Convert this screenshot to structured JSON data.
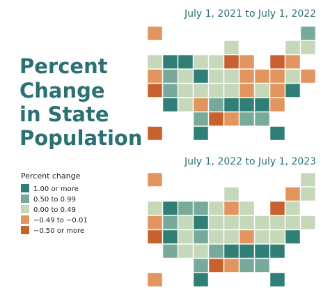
{
  "title_lines": [
    "Percent",
    "Change",
    "in State",
    "Population"
  ],
  "maps": [
    {
      "title": "July 1, 2021 to July 1, 2022"
    },
    {
      "title": "July 1, 2022 to July 1, 2023"
    }
  ],
  "legend": {
    "title": "Percent change",
    "items": [
      {
        "label": "1.00 or more",
        "color": "#2f7f76"
      },
      {
        "label": "0.50 to 0.99",
        "color": "#77aa9b"
      },
      {
        "label": "0.00 to 0.49",
        "color": "#c5d8ba"
      },
      {
        "label": "−0.49 to −0.01",
        "color": "#e2955f"
      },
      {
        "label": "−0.50 or more",
        "color": "#c8612e"
      }
    ]
  }
}
